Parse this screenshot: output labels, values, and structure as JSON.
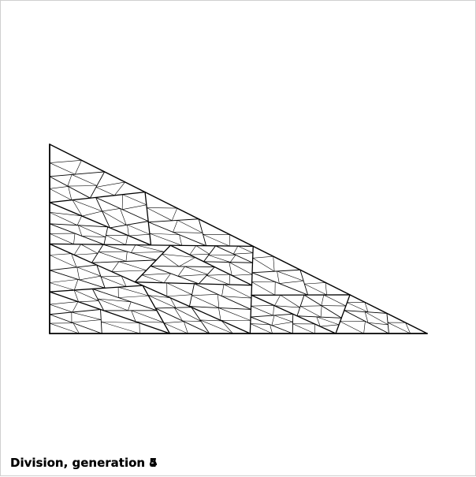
{
  "caption": {
    "text": "Division, generation 4",
    "ghost_text": "Division, generation 5"
  },
  "figure": {
    "subdivision_generations": 4,
    "line_color": "#000000",
    "background_color": "#ffffff"
  }
}
